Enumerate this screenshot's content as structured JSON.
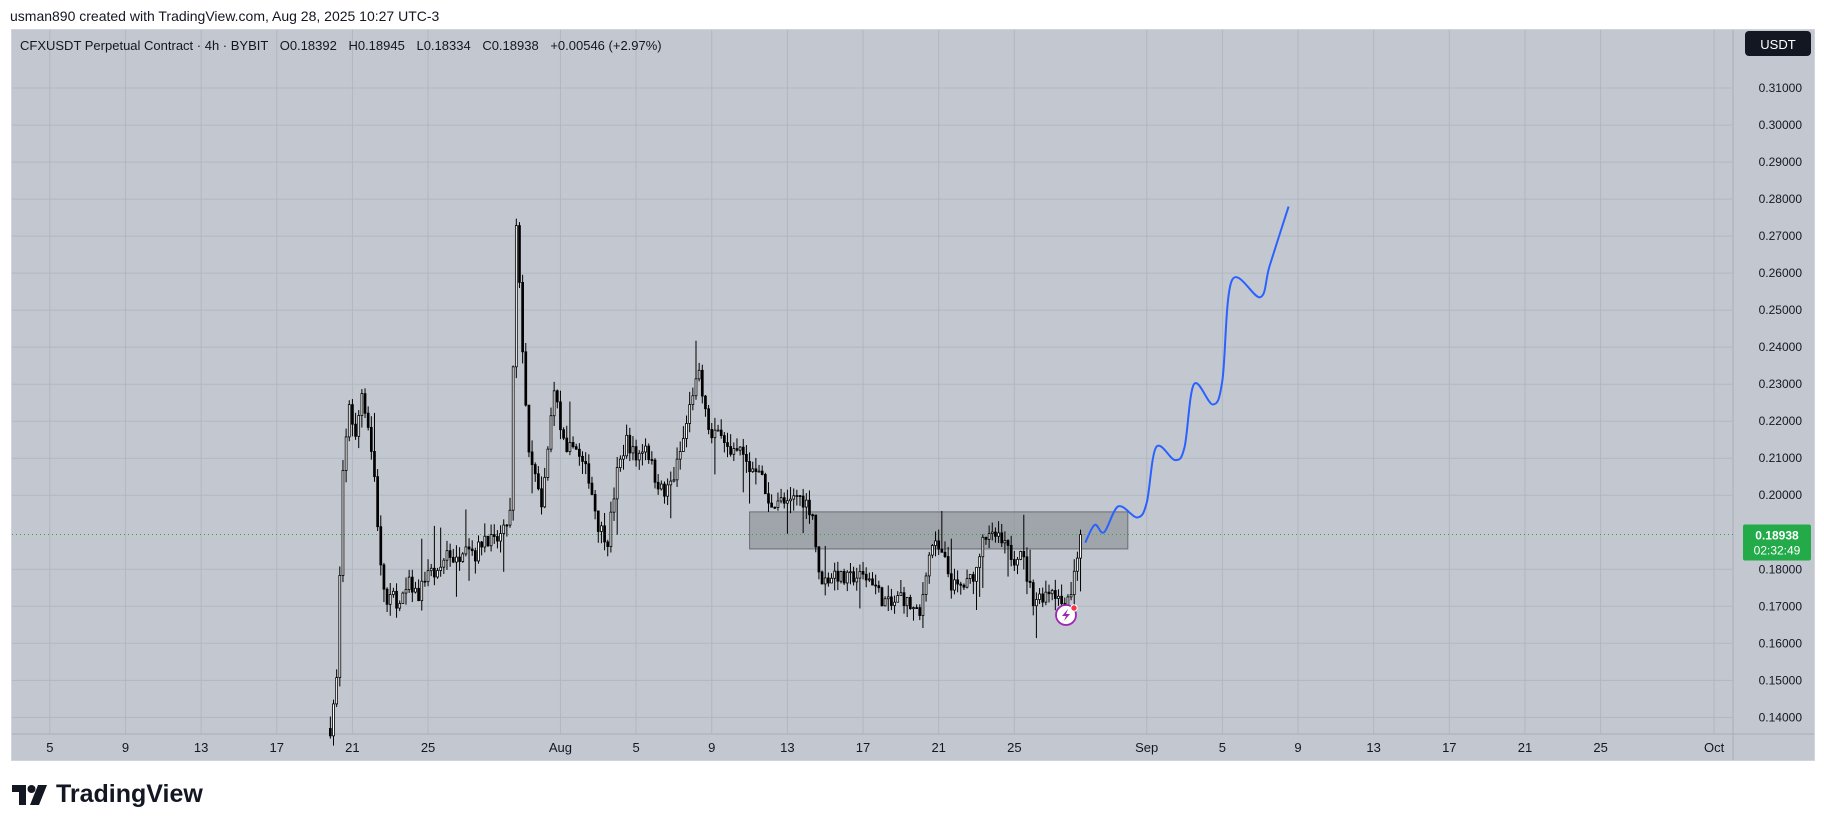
{
  "header": {
    "attribution": "usman890 created with TradingView.com, Aug 28, 2025 10:27 UTC-3"
  },
  "legend": {
    "symbol": "CFXUSDT Perpetual Contract · 4h · BYBIT",
    "open_label": "O",
    "open": "0.18392",
    "high_label": "H",
    "high": "0.18945",
    "low_label": "L",
    "low": "0.18334",
    "close_label": "C",
    "close": "0.18938",
    "change": "+0.00546 (+2.97%)"
  },
  "price_scale": {
    "currency_label": "USDT",
    "current_price": "0.18938",
    "countdown": "02:32:49"
  },
  "branding": {
    "logo_text": "TradingView"
  },
  "colors": {
    "background": "#c3c8d0",
    "grid": "#b2b7bf",
    "candle": "#000000",
    "projection_line": "#2962ff",
    "price_badge": "#22ab48",
    "currency_badge": "#131722",
    "zone_fill": "#8e9297"
  },
  "chart_data": {
    "type": "candlestick",
    "symbol": "CFXUSDT",
    "timeframe": "4h",
    "exchange": "BYBIT",
    "ohlc_last": {
      "open": 0.18392,
      "high": 0.18945,
      "low": 0.18334,
      "close": 0.18938
    },
    "y_range": [
      0.1355,
      0.3192
    ],
    "y_ticks": [
      "0.31000",
      "0.30000",
      "0.29000",
      "0.28000",
      "0.27000",
      "0.26000",
      "0.25000",
      "0.24000",
      "0.23000",
      "0.22000",
      "0.21000",
      "0.20000",
      "0.18000",
      "0.17000",
      "0.16000",
      "0.15000",
      "0.14000"
    ],
    "x_range": [
      "2025-07-03",
      "2025-10-02"
    ],
    "x_ticks": [
      {
        "label": "5",
        "date": "2025-07-05"
      },
      {
        "label": "9",
        "date": "2025-07-09"
      },
      {
        "label": "13",
        "date": "2025-07-13"
      },
      {
        "label": "17",
        "date": "2025-07-17"
      },
      {
        "label": "21",
        "date": "2025-07-21"
      },
      {
        "label": "25",
        "date": "2025-07-25"
      },
      {
        "label": "Aug",
        "date": "2025-08-01"
      },
      {
        "label": "5",
        "date": "2025-08-05"
      },
      {
        "label": "9",
        "date": "2025-08-09"
      },
      {
        "label": "13",
        "date": "2025-08-13"
      },
      {
        "label": "17",
        "date": "2025-08-17"
      },
      {
        "label": "21",
        "date": "2025-08-21"
      },
      {
        "label": "25",
        "date": "2025-08-25"
      },
      {
        "label": "Sep",
        "date": "2025-09-01"
      },
      {
        "label": "5",
        "date": "2025-09-05"
      },
      {
        "label": "9",
        "date": "2025-09-09"
      },
      {
        "label": "13",
        "date": "2025-09-13"
      },
      {
        "label": "17",
        "date": "2025-09-17"
      },
      {
        "label": "21",
        "date": "2025-09-21"
      },
      {
        "label": "25",
        "date": "2025-09-25"
      },
      {
        "label": "Oct",
        "date": "2025-10-01"
      }
    ],
    "price_path": [
      [
        "2025-07-19T20:00",
        0.137
      ],
      [
        "2025-07-20T04:00",
        0.15
      ],
      [
        "2025-07-20T12:00",
        0.205
      ],
      [
        "2025-07-20T20:00",
        0.225
      ],
      [
        "2025-07-21T04:00",
        0.215
      ],
      [
        "2025-07-21T12:00",
        0.228
      ],
      [
        "2025-07-21T20:00",
        0.219
      ],
      [
        "2025-07-22T04:00",
        0.205
      ],
      [
        "2025-07-22T12:00",
        0.18
      ],
      [
        "2025-07-22T20:00",
        0.17
      ],
      [
        "2025-07-23T04:00",
        0.173
      ],
      [
        "2025-07-23T12:00",
        0.17
      ],
      [
        "2025-07-24T00:00",
        0.176
      ],
      [
        "2025-07-24T12:00",
        0.173
      ],
      [
        "2025-07-25T00:00",
        0.18
      ],
      [
        "2025-07-25T12:00",
        0.178
      ],
      [
        "2025-07-26T00:00",
        0.185
      ],
      [
        "2025-07-26T12:00",
        0.182
      ],
      [
        "2025-07-27T00:00",
        0.188
      ],
      [
        "2025-07-27T12:00",
        0.184
      ],
      [
        "2025-07-28T00:00",
        0.189
      ],
      [
        "2025-07-28T12:00",
        0.187
      ],
      [
        "2025-07-29T00:00",
        0.19
      ],
      [
        "2025-07-29T08:00",
        0.195
      ],
      [
        "2025-07-29T16:00",
        0.272
      ],
      [
        "2025-07-30T00:00",
        0.24
      ],
      [
        "2025-07-30T08:00",
        0.21
      ],
      [
        "2025-07-30T16:00",
        0.205
      ],
      [
        "2025-07-31T00:00",
        0.196
      ],
      [
        "2025-07-31T08:00",
        0.212
      ],
      [
        "2025-07-31T16:00",
        0.23
      ],
      [
        "2025-08-01T00:00",
        0.218
      ],
      [
        "2025-08-01T08:00",
        0.21
      ],
      [
        "2025-08-01T16:00",
        0.215
      ],
      [
        "2025-08-02T00:00",
        0.21
      ],
      [
        "2025-08-02T12:00",
        0.205
      ],
      [
        "2025-08-03T00:00",
        0.192
      ],
      [
        "2025-08-03T12:00",
        0.188
      ],
      [
        "2025-08-04T00:00",
        0.206
      ],
      [
        "2025-08-04T12:00",
        0.215
      ],
      [
        "2025-08-05T00:00",
        0.21
      ],
      [
        "2025-08-05T12:00",
        0.214
      ],
      [
        "2025-08-06T00:00",
        0.205
      ],
      [
        "2025-08-06T12:00",
        0.2
      ],
      [
        "2025-08-07T00:00",
        0.205
      ],
      [
        "2025-08-07T12:00",
        0.215
      ],
      [
        "2025-08-08T00:00",
        0.228
      ],
      [
        "2025-08-08T08:00",
        0.232
      ],
      [
        "2025-08-08T16:00",
        0.222
      ],
      [
        "2025-08-09T00:00",
        0.215
      ],
      [
        "2025-08-09T12:00",
        0.218
      ],
      [
        "2025-08-10T00:00",
        0.21
      ],
      [
        "2025-08-10T12:00",
        0.212
      ],
      [
        "2025-08-11T00:00",
        0.207
      ],
      [
        "2025-08-11T12:00",
        0.208
      ],
      [
        "2025-08-12T00:00",
        0.197
      ],
      [
        "2025-08-12T12:00",
        0.199
      ],
      [
        "2025-08-13T00:00",
        0.197
      ],
      [
        "2025-08-13T12:00",
        0.2
      ],
      [
        "2025-08-14T00:00",
        0.198
      ],
      [
        "2025-08-14T08:00",
        0.195
      ],
      [
        "2025-08-14T16:00",
        0.178
      ],
      [
        "2025-08-15T00:00",
        0.177
      ],
      [
        "2025-08-15T12:00",
        0.179
      ],
      [
        "2025-08-16T00:00",
        0.177
      ],
      [
        "2025-08-16T12:00",
        0.178
      ],
      [
        "2025-08-17T00:00",
        0.178
      ],
      [
        "2025-08-17T12:00",
        0.177
      ],
      [
        "2025-08-18T00:00",
        0.172
      ],
      [
        "2025-08-18T12:00",
        0.17
      ],
      [
        "2025-08-19T00:00",
        0.173
      ],
      [
        "2025-08-19T12:00",
        0.17
      ],
      [
        "2025-08-20T00:00",
        0.167
      ],
      [
        "2025-08-20T08:00",
        0.18
      ],
      [
        "2025-08-20T16:00",
        0.187
      ],
      [
        "2025-08-21T00:00",
        0.185
      ],
      [
        "2025-08-21T08:00",
        0.182
      ],
      [
        "2025-08-21T16:00",
        0.176
      ],
      [
        "2025-08-22T00:00",
        0.175
      ],
      [
        "2025-08-22T12:00",
        0.176
      ],
      [
        "2025-08-23T00:00",
        0.18
      ],
      [
        "2025-08-23T08:00",
        0.19
      ],
      [
        "2025-08-23T16:00",
        0.188
      ],
      [
        "2025-08-24T00:00",
        0.189
      ],
      [
        "2025-08-24T12:00",
        0.186
      ],
      [
        "2025-08-25T00:00",
        0.183
      ],
      [
        "2025-08-25T08:00",
        0.186
      ],
      [
        "2025-08-25T16:00",
        0.178
      ],
      [
        "2025-08-26T00:00",
        0.172
      ],
      [
        "2025-08-26T12:00",
        0.173
      ],
      [
        "2025-08-27T00:00",
        0.175
      ],
      [
        "2025-08-27T12:00",
        0.171
      ],
      [
        "2025-08-28T00:00",
        0.174
      ],
      [
        "2025-08-28T08:00",
        0.184
      ],
      [
        "2025-08-28T12:00",
        0.18938
      ]
    ],
    "annotations": [
      {
        "type": "rectangle",
        "label": "range zone",
        "from": "2025-08-11",
        "to": "2025-08-31",
        "price_top": 0.1955,
        "price_bottom": 0.1855
      },
      {
        "type": "projection_path",
        "points": [
          [
            "2025-08-28T18:00",
            0.1872
          ],
          [
            "2025-08-29T06:00",
            0.192
          ],
          [
            "2025-08-29T18:00",
            0.19
          ],
          [
            "2025-08-30T12:00",
            0.197
          ],
          [
            "2025-08-31T12:00",
            0.194
          ],
          [
            "2025-09-01T00:00",
            0.198
          ],
          [
            "2025-09-01T12:00",
            0.213
          ],
          [
            "2025-09-02T12:00",
            0.2095
          ],
          [
            "2025-09-03T00:00",
            0.213
          ],
          [
            "2025-09-03T12:00",
            0.23
          ],
          [
            "2025-09-04T12:00",
            0.2245
          ],
          [
            "2025-09-05T00:00",
            0.231
          ],
          [
            "2025-09-05T12:00",
            0.258
          ],
          [
            "2025-09-07T00:00",
            0.2535
          ],
          [
            "2025-09-07T12:00",
            0.262
          ],
          [
            "2025-09-08T12:00",
            0.278
          ]
        ]
      }
    ]
  }
}
